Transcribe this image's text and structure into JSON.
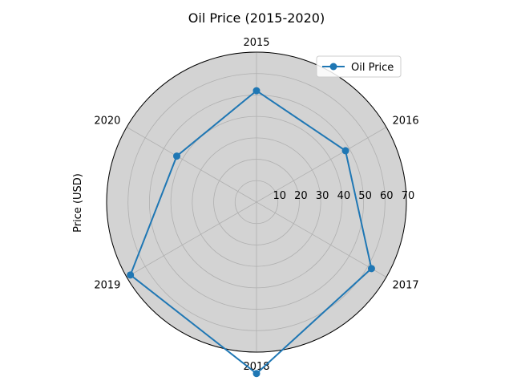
{
  "chart_data": {
    "type": "radar",
    "title": "Oil Price (2015-2020)",
    "ylabel": "Price (USD)",
    "categories": [
      "2015",
      "2016",
      "2017",
      "2018",
      "2019",
      "2020"
    ],
    "series": [
      {
        "name": "Oil Price",
        "values": [
          52,
          48,
          62,
          80,
          68,
          43
        ],
        "color": "#1f77b4"
      }
    ],
    "rlim": [
      0,
      70
    ],
    "rticks": [
      10,
      20,
      30,
      40,
      50,
      60,
      70
    ],
    "rtick_labels": [
      "10",
      "20",
      "30",
      "40",
      "50",
      "60",
      "70"
    ],
    "grid": true,
    "background_color": "#d3d3d3",
    "legend": "top-right"
  }
}
